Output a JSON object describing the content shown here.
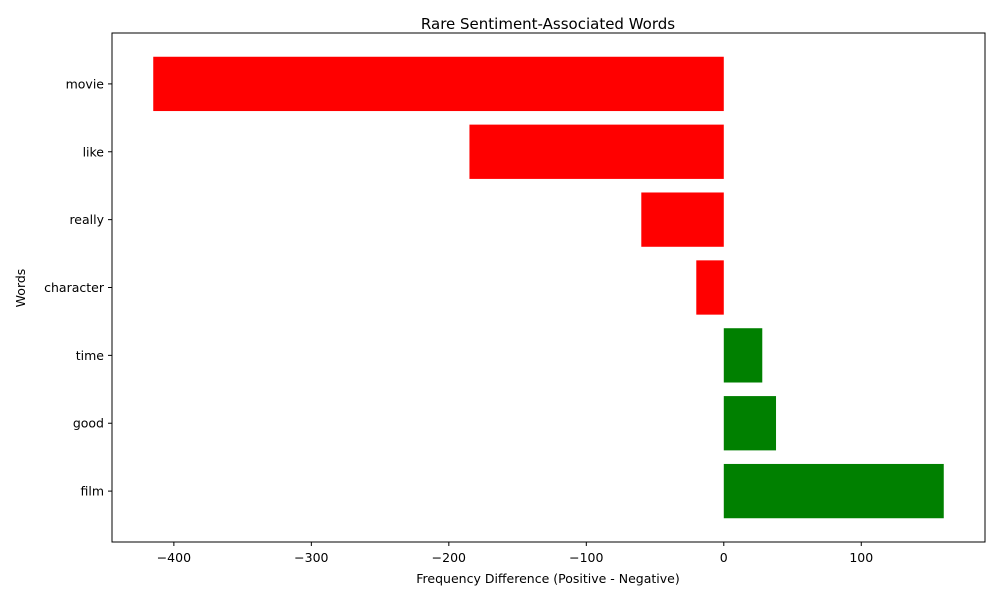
{
  "chart_data": {
    "type": "bar",
    "orientation": "horizontal",
    "title": "Rare Sentiment-Associated Words",
    "xlabel": "Frequency Difference (Positive - Negative)",
    "ylabel": "Words",
    "categories": [
      "film",
      "good",
      "time",
      "character",
      "really",
      "like",
      "movie"
    ],
    "values": [
      160,
      38,
      28,
      -20,
      -60,
      -185,
      -415
    ],
    "xlim": [
      -445,
      190
    ],
    "xticks": [
      -400,
      -300,
      -200,
      -100,
      0,
      100
    ],
    "xtick_labels": [
      "−400",
      "−300",
      "−200",
      "−100",
      "0",
      "100"
    ],
    "colors": {
      "positive": "#008000",
      "negative": "#ff0000"
    },
    "grid": false,
    "legend": "none"
  }
}
